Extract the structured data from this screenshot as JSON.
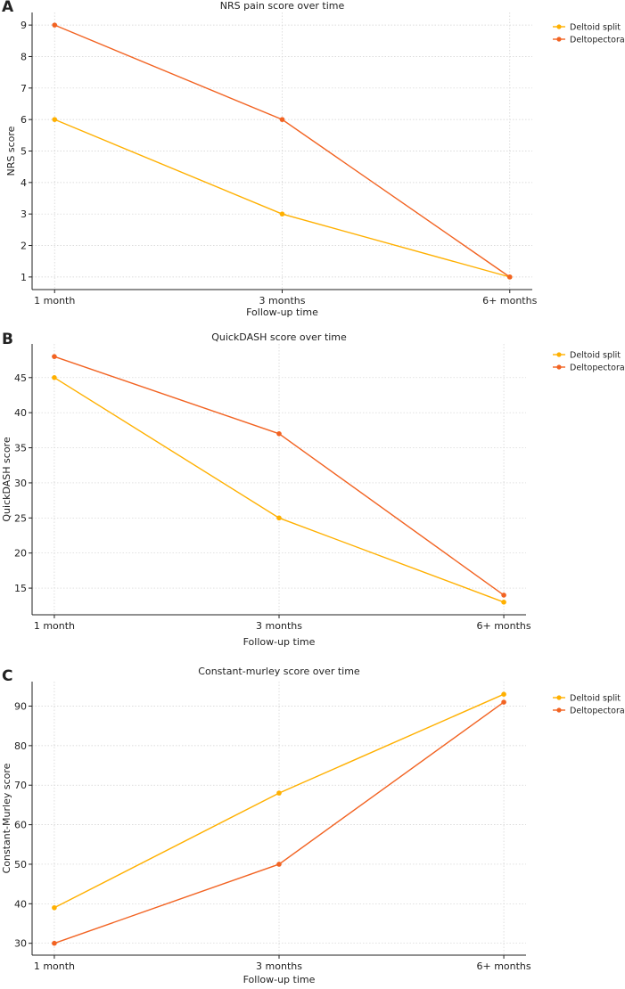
{
  "chart_data": [
    {
      "type": "line",
      "panel": "A",
      "title": "NRS pain score over time",
      "xlabel": "Follow-up time",
      "ylabel": "NRS score",
      "categories": [
        "1 month",
        "3 months",
        "6+ months"
      ],
      "ylim": [
        0.6,
        9.4
      ],
      "yticks": [
        1,
        2,
        3,
        4,
        5,
        6,
        7,
        8,
        9
      ],
      "grid": true,
      "legend_position": "top-right-outside",
      "series": [
        {
          "name": "Deltoid split",
          "color": "#FFB000",
          "values": [
            6,
            3,
            1
          ]
        },
        {
          "name": "Deltopectoral",
          "color": "#F26322",
          "values": [
            9,
            6,
            1
          ]
        }
      ]
    },
    {
      "type": "line",
      "panel": "B",
      "title": "QuickDASH score over time",
      "xlabel": "Follow-up time",
      "ylabel": "QuickDASH score",
      "categories": [
        "1 month",
        "3 months",
        "6+ months"
      ],
      "ylim": [
        11.2,
        49.8
      ],
      "yticks": [
        15,
        20,
        25,
        30,
        35,
        40,
        45
      ],
      "grid": true,
      "legend_position": "top-right-outside",
      "series": [
        {
          "name": "Deltoid split",
          "color": "#FFB000",
          "values": [
            45,
            25,
            13
          ]
        },
        {
          "name": "Deltopectoral",
          "color": "#F26322",
          "values": [
            48,
            37,
            14
          ]
        }
      ]
    },
    {
      "type": "line",
      "panel": "C",
      "title": "Constant-murley score over time",
      "xlabel": "Follow-up time",
      "ylabel": "Constant-Murley score",
      "categories": [
        "1 month",
        "3 months",
        "6+ months"
      ],
      "ylim": [
        27,
        96.2
      ],
      "yticks": [
        30,
        40,
        50,
        60,
        70,
        80,
        90
      ],
      "grid": true,
      "legend_position": "top-right-outside",
      "series": [
        {
          "name": "Deltoid split",
          "color": "#FFB000",
          "values": [
            39,
            68,
            93
          ]
        },
        {
          "name": "Deltopectoral",
          "color": "#F26322",
          "values": [
            30,
            50,
            91
          ]
        }
      ]
    }
  ]
}
